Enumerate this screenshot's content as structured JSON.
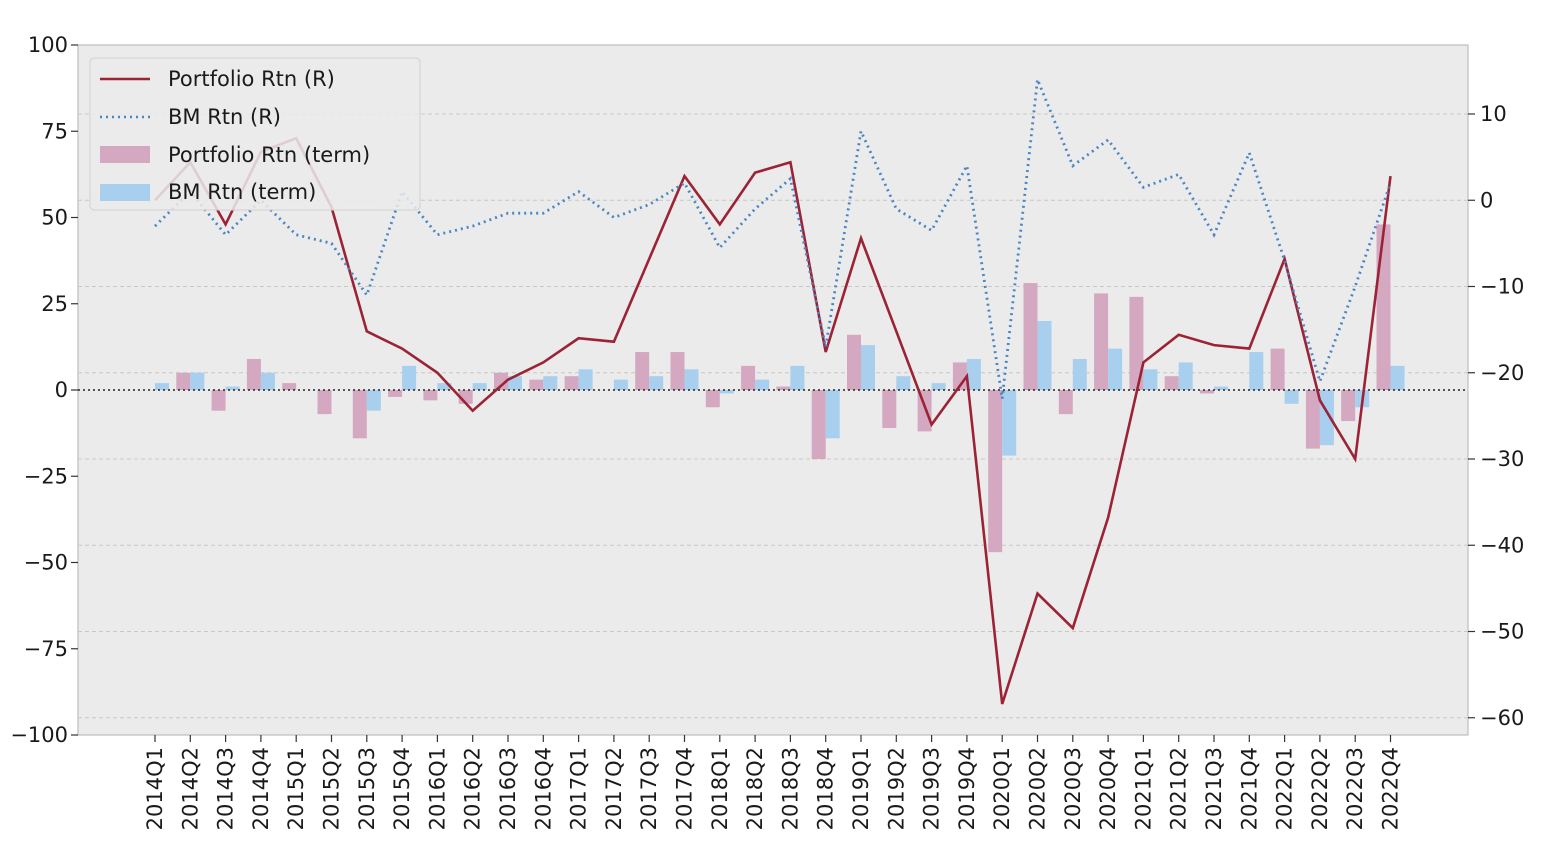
{
  "chart_data": {
    "type": "bar+line",
    "categories": [
      "2014Q1",
      "2014Q2",
      "2014Q3",
      "2014Q4",
      "2015Q1",
      "2015Q2",
      "2015Q3",
      "2015Q4",
      "2016Q1",
      "2016Q2",
      "2016Q3",
      "2016Q4",
      "2017Q1",
      "2017Q2",
      "2017Q3",
      "2017Q4",
      "2018Q1",
      "2018Q2",
      "2018Q3",
      "2018Q4",
      "2019Q1",
      "2019Q2",
      "2019Q3",
      "2019Q4",
      "2020Q1",
      "2020Q2",
      "2020Q3",
      "2020Q4",
      "2021Q1",
      "2021Q2",
      "2021Q3",
      "2021Q4",
      "2022Q1",
      "2022Q2",
      "2022Q3",
      "2022Q4"
    ],
    "left_axis": {
      "ylim": [
        -100,
        100
      ],
      "ticks": [
        100,
        75,
        50,
        25,
        0,
        -25,
        -50,
        -75,
        -100
      ],
      "tick_labels": [
        "100",
        "75",
        "50",
        "25",
        "0",
        "−25",
        "−50",
        "−75",
        "−100"
      ]
    },
    "right_axis": {
      "ylim": [
        -62,
        18
      ],
      "ticks": [
        10,
        0,
        -10,
        -20,
        -30,
        -40,
        -50,
        -60
      ],
      "tick_labels": [
        "10",
        "0",
        "−10",
        "−20",
        "−30",
        "−40",
        "−50",
        "−60"
      ]
    },
    "series": [
      {
        "name": "Portfolio Rtn (R)",
        "axis": "left",
        "style": "line",
        "color": "#9b2335",
        "values": [
          55,
          66,
          48,
          69,
          73,
          53,
          17,
          12,
          5,
          -6,
          3,
          8,
          15,
          14,
          38,
          62,
          48,
          63,
          66,
          11,
          44,
          17,
          -10,
          4,
          -91,
          -59,
          -69,
          -37,
          8,
          16,
          13,
          12,
          38,
          -3,
          -20,
          62
        ]
      },
      {
        "name": "BM Rtn (R)",
        "axis": "right",
        "style": "dotted-line",
        "color": "#4a86c4",
        "values": [
          -3,
          1,
          -4,
          0,
          -4,
          -5,
          -11,
          1,
          -4,
          -3,
          -1.5,
          -1.5,
          1,
          -2,
          -0.5,
          2,
          -5.5,
          -1,
          2.5,
          -17,
          8,
          -1,
          -3.5,
          4,
          -23,
          14,
          4,
          7,
          1.5,
          3,
          -4,
          5.5,
          -7,
          -21,
          -10,
          2
        ]
      },
      {
        "name": "Portfolio Rtn (term)",
        "axis": "left",
        "style": "bar",
        "color": "#d4a8c0",
        "values": [
          0,
          5,
          -6,
          9,
          2,
          -7,
          -14,
          -2,
          -3,
          -4,
          5,
          3,
          4,
          0,
          11,
          11,
          -5,
          7,
          1,
          -20,
          16,
          -11,
          -12,
          8,
          -47,
          31,
          -7,
          28,
          27,
          4,
          -1,
          0,
          12,
          -17,
          -9,
          48
        ]
      },
      {
        "name": "BM Rtn (term)",
        "axis": "left",
        "style": "bar",
        "color": "#a9cfee",
        "values": [
          2,
          5,
          1,
          5,
          0,
          0,
          -6,
          7,
          2,
          2,
          4,
          4,
          6,
          3,
          4,
          6,
          -1,
          3,
          7,
          -14,
          13,
          4,
          2,
          9,
          -19,
          20,
          9,
          12,
          6,
          8,
          1,
          11,
          -4,
          -16,
          -5,
          7
        ]
      }
    ],
    "legend_position": "upper-left",
    "grid": "horizontal dashed",
    "zero_line": "dotted"
  }
}
